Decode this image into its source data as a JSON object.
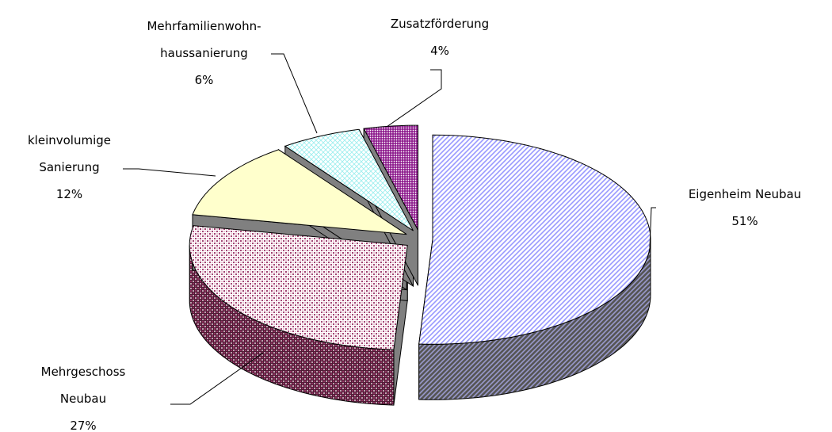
{
  "chart_data": {
    "type": "pie3d",
    "categories": [
      "Eigenheim Neubau",
      "Mehrgeschoss Neubau",
      "kleinvolumige Sanierung",
      "Mehrfamilienwohn-haussanierung",
      "Zusatzförderung"
    ],
    "values": [
      51,
      27,
      12,
      6,
      4
    ],
    "value_labels": [
      "51%",
      "27%",
      "12%",
      "6%",
      "4%"
    ],
    "colors": [
      "#9999ff",
      "#993366",
      "#ffffcc",
      "#ccffff",
      "#800080"
    ]
  }
}
